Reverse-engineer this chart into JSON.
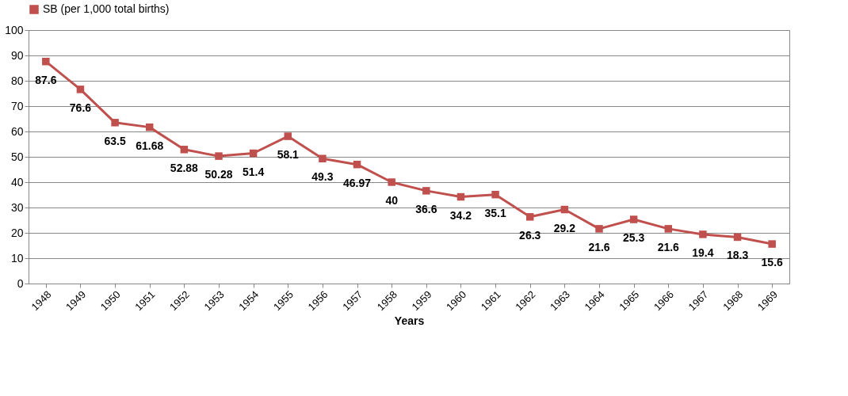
{
  "chart_data": {
    "type": "line",
    "categories": [
      "1948",
      "1949",
      "1950",
      "1951",
      "1952",
      "1953",
      "1954",
      "1955",
      "1956",
      "1957",
      "1958",
      "1959",
      "1960",
      "1961",
      "1962",
      "1963",
      "1964",
      "1965",
      "1966",
      "1967",
      "1968",
      "1969"
    ],
    "series": [
      {
        "name": "SB (per 1,000 total births)",
        "color": "#c0504d",
        "values": [
          87.6,
          76.6,
          63.5,
          61.68,
          52.88,
          50.28,
          51.4,
          58.1,
          49.3,
          46.97,
          40,
          36.6,
          34.2,
          35.1,
          26.3,
          29.2,
          21.6,
          25.3,
          21.6,
          19.4,
          18.3,
          15.6
        ]
      }
    ],
    "xlabel": "Years",
    "ylim": [
      0,
      100
    ],
    "yticks": [
      0,
      10,
      20,
      30,
      40,
      50,
      60,
      70,
      80,
      90,
      100
    ],
    "grid": "y",
    "legend": "top",
    "marker": "square",
    "data_labels": true
  }
}
